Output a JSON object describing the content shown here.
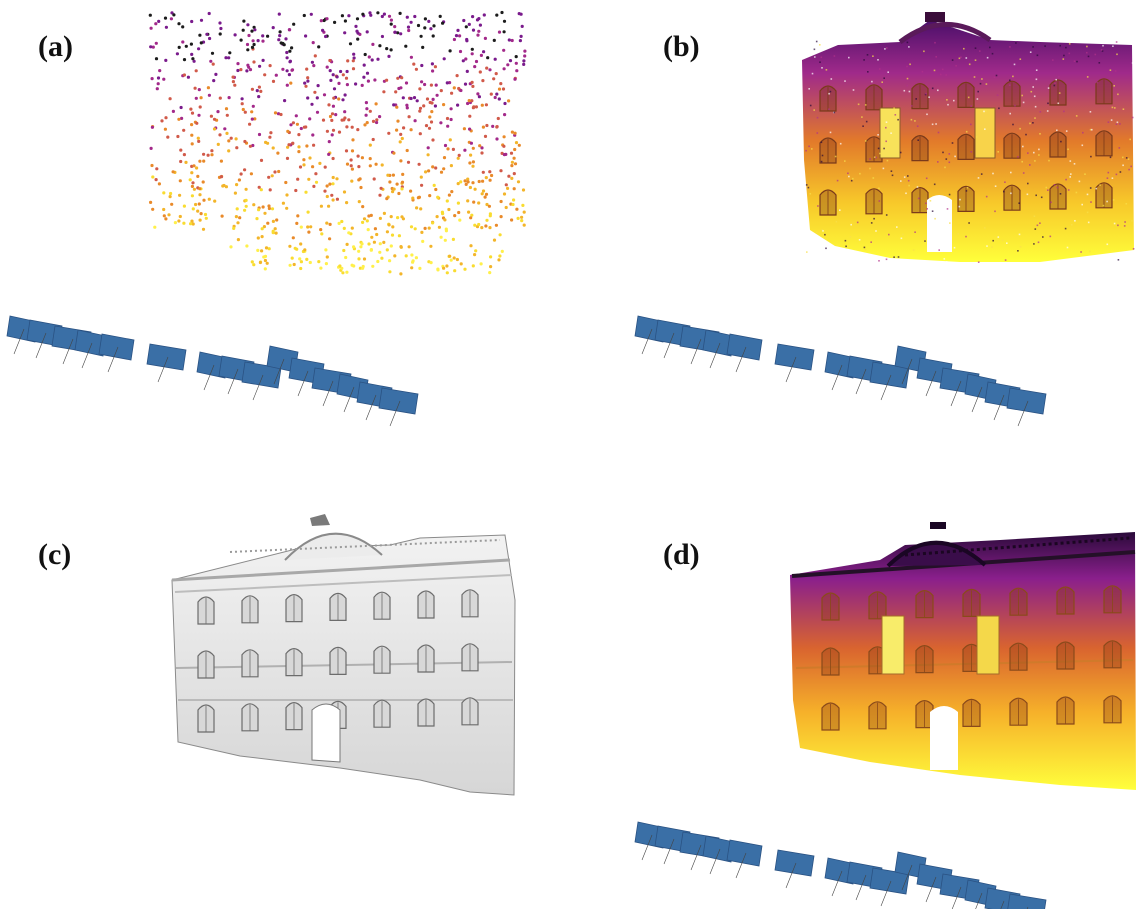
{
  "panels": [
    {
      "label": "(a)"
    },
    {
      "label": "(b)"
    },
    {
      "label": "(c)"
    },
    {
      "label": "(d)"
    }
  ],
  "colors": {
    "background": "#ffffff",
    "camera_fill": "#3a6fa6",
    "camera_edge": "#2a5283",
    "heat_low": "#ffff40",
    "heat_mid": "#f39a2b",
    "heat_high": "#7a1b8c",
    "heat_dark": "#1a0a2a",
    "mesh_gray": "#e4e4e4",
    "mesh_shadow": "#9c9c9c"
  }
}
